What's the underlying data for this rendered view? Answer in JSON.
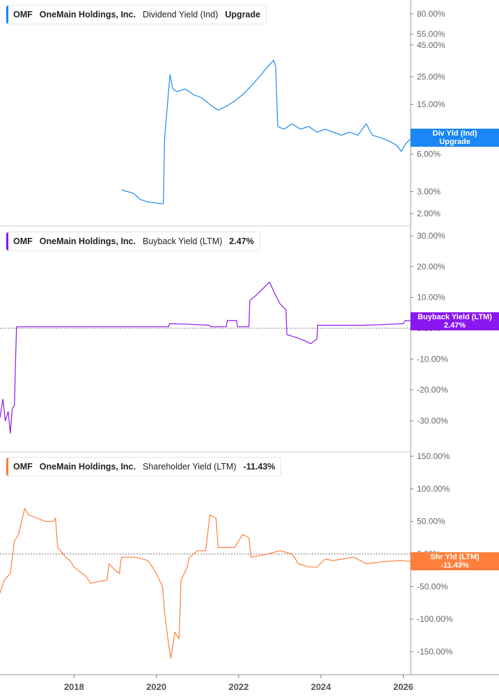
{
  "chart_data": [
    {
      "type": "line",
      "legend": {
        "ticker": "OMF",
        "company": "OneMain Holdings, Inc.",
        "metric": "Dividend Yield (Ind)",
        "value": "Upgrade"
      },
      "badge": {
        "label": "Div Yld (Ind)",
        "value": "Upgrade"
      },
      "color": "#1a87f5",
      "y_scale": "log",
      "ylim": [
        1.7,
        100
      ],
      "y_ticks": [
        80,
        55,
        45,
        25,
        15,
        8,
        6,
        3,
        2
      ],
      "y_tick_labels": [
        "80.00%",
        "55.00%",
        "45.00%",
        "25.00%",
        "15.00%",
        "8.00%",
        "6.00%",
        "3.00%",
        "2.00%"
      ],
      "series": [
        {
          "points": [
            [
              2019.15,
              3.1
            ],
            [
              2019.3,
              3.0
            ],
            [
              2019.45,
              2.9
            ],
            [
              2019.6,
              2.6
            ],
            [
              2019.75,
              2.5
            ],
            [
              2019.9,
              2.45
            ],
            [
              2020.1,
              2.4
            ],
            [
              2020.17,
              2.4
            ],
            [
              2020.2,
              8.0
            ],
            [
              2020.27,
              15
            ],
            [
              2020.33,
              26
            ],
            [
              2020.4,
              20
            ],
            [
              2020.5,
              19
            ],
            [
              2020.7,
              20
            ],
            [
              2020.9,
              18
            ],
            [
              2021.1,
              17
            ],
            [
              2021.3,
              15
            ],
            [
              2021.5,
              13.5
            ],
            [
              2021.7,
              14.5
            ],
            [
              2021.9,
              16
            ],
            [
              2022.1,
              18
            ],
            [
              2022.3,
              21
            ],
            [
              2022.5,
              25
            ],
            [
              2022.7,
              30
            ],
            [
              2022.85,
              34
            ],
            [
              2022.9,
              30
            ],
            [
              2022.95,
              10
            ],
            [
              2023.1,
              9.5
            ],
            [
              2023.3,
              10.5
            ],
            [
              2023.5,
              9.5
            ],
            [
              2023.7,
              10
            ],
            [
              2023.9,
              9
            ],
            [
              2024.1,
              9.5
            ],
            [
              2024.3,
              9
            ],
            [
              2024.5,
              8.5
            ],
            [
              2024.7,
              9
            ],
            [
              2024.9,
              8.5
            ],
            [
              2025.1,
              10.5
            ],
            [
              2025.25,
              8.5
            ],
            [
              2025.5,
              8.0
            ],
            [
              2025.7,
              7.5
            ],
            [
              2025.85,
              7.0
            ],
            [
              2025.95,
              6.3
            ],
            [
              2026.05,
              7.2
            ],
            [
              2026.15,
              7.8
            ],
            [
              2026.25,
              8.3
            ]
          ]
        }
      ]
    },
    {
      "type": "line",
      "legend": {
        "ticker": "OMF",
        "company": "OneMain Holdings, Inc.",
        "metric": "Buyback Yield (LTM)",
        "value": "2.47%"
      },
      "badge": {
        "label": "Buyback Yield (LTM)",
        "value": "2.47%"
      },
      "color": "#8a17f2",
      "y_scale": "linear",
      "ylim": [
        -40,
        35
      ],
      "zero_line": true,
      "y_ticks": [
        30,
        20,
        10,
        0,
        -10,
        -20,
        -30
      ],
      "y_tick_labels": [
        "30.00%",
        "20.00%",
        "10.00%",
        "0.00%",
        "-10.00%",
        "-20.00%",
        "-30.00%"
      ],
      "series": [
        {
          "points": [
            [
              2016.2,
              -29
            ],
            [
              2016.27,
              -23
            ],
            [
              2016.33,
              -30
            ],
            [
              2016.4,
              -27
            ],
            [
              2016.45,
              -34
            ],
            [
              2016.5,
              -26
            ],
            [
              2016.55,
              -25
            ],
            [
              2016.6,
              0.5
            ],
            [
              2017.5,
              0.5
            ],
            [
              2018.5,
              0.5
            ],
            [
              2019.5,
              0.5
            ],
            [
              2020.3,
              0.5
            ],
            [
              2020.32,
              1.5
            ],
            [
              2020.8,
              1.3
            ],
            [
              2021.3,
              1.0
            ],
            [
              2021.32,
              0.5
            ],
            [
              2021.7,
              0.5
            ],
            [
              2021.72,
              2.5
            ],
            [
              2021.95,
              2.5
            ],
            [
              2021.97,
              0.5
            ],
            [
              2022.25,
              0.5
            ],
            [
              2022.27,
              9
            ],
            [
              2022.45,
              11
            ],
            [
              2022.6,
              13
            ],
            [
              2022.75,
              15
            ],
            [
              2022.85,
              12
            ],
            [
              2023.0,
              8
            ],
            [
              2023.15,
              6
            ],
            [
              2023.17,
              -2
            ],
            [
              2023.4,
              -3
            ],
            [
              2023.6,
              -4
            ],
            [
              2023.75,
              -5
            ],
            [
              2023.9,
              -3.5
            ],
            [
              2023.92,
              1
            ],
            [
              2024.5,
              1
            ],
            [
              2025.0,
              1
            ],
            [
              2025.5,
              1.2
            ],
            [
              2026.0,
              1.5
            ],
            [
              2026.05,
              2.5
            ],
            [
              2026.2,
              2.47
            ]
          ]
        }
      ]
    },
    {
      "type": "line",
      "legend": {
        "ticker": "OMF",
        "company": "OneMain Holdings, Inc.",
        "metric": "Shareholder Yield (LTM)",
        "value": "-11.43%"
      },
      "badge": {
        "label": "Shr Yld (LTM)",
        "value": "-11.43%"
      },
      "color": "#ff7f3a",
      "y_scale": "linear",
      "ylim": [
        -170,
        165
      ],
      "zero_line": true,
      "y_ticks": [
        150,
        100,
        50,
        0,
        -50,
        -100,
        -150
      ],
      "y_tick_labels": [
        "150.00%",
        "100.00%",
        "50.00%",
        "0.00%",
        "-50.00%",
        "-100.00%",
        "-150.00%"
      ],
      "x_ticks": [
        2018,
        2020,
        2022,
        2024,
        2026
      ],
      "x_tick_labels": [
        "2018",
        "2020",
        "2022",
        "2024",
        "2026"
      ],
      "xlim": [
        2016.2,
        2026.5
      ],
      "series": [
        {
          "points": [
            [
              2016.2,
              -60
            ],
            [
              2016.3,
              -40
            ],
            [
              2016.45,
              -30
            ],
            [
              2016.55,
              20
            ],
            [
              2016.65,
              30
            ],
            [
              2016.8,
              70
            ],
            [
              2016.9,
              60
            ],
            [
              2017.1,
              55
            ],
            [
              2017.3,
              50
            ],
            [
              2017.5,
              50
            ],
            [
              2017.55,
              55
            ],
            [
              2017.6,
              10
            ],
            [
              2017.8,
              -5
            ],
            [
              2017.9,
              -10
            ],
            [
              2018.0,
              -20
            ],
            [
              2018.3,
              -35
            ],
            [
              2018.4,
              -45
            ],
            [
              2018.6,
              -42
            ],
            [
              2018.8,
              -40
            ],
            [
              2018.85,
              -15
            ],
            [
              2019.0,
              -25
            ],
            [
              2019.1,
              -30
            ],
            [
              2019.15,
              -5
            ],
            [
              2019.5,
              -5
            ],
            [
              2019.8,
              -10
            ],
            [
              2020.0,
              -30
            ],
            [
              2020.15,
              -50
            ],
            [
              2020.2,
              -90
            ],
            [
              2020.3,
              -140
            ],
            [
              2020.35,
              -160
            ],
            [
              2020.45,
              -120
            ],
            [
              2020.55,
              -130
            ],
            [
              2020.6,
              -40
            ],
            [
              2020.75,
              -20
            ],
            [
              2020.8,
              -5
            ],
            [
              2021.0,
              5
            ],
            [
              2021.2,
              5
            ],
            [
              2021.3,
              60
            ],
            [
              2021.45,
              55
            ],
            [
              2021.5,
              10
            ],
            [
              2021.9,
              10
            ],
            [
              2022.1,
              30
            ],
            [
              2022.25,
              25
            ],
            [
              2022.3,
              -5
            ],
            [
              2022.7,
              0
            ],
            [
              2023.0,
              5
            ],
            [
              2023.3,
              0
            ],
            [
              2023.45,
              -15
            ],
            [
              2023.7,
              -20
            ],
            [
              2023.9,
              -20
            ],
            [
              2024.1,
              -8
            ],
            [
              2024.3,
              -10
            ],
            [
              2024.8,
              -5
            ],
            [
              2025.1,
              -15
            ],
            [
              2025.5,
              -12
            ],
            [
              2025.9,
              -10
            ],
            [
              2026.2,
              -11.43
            ]
          ]
        }
      ]
    }
  ]
}
